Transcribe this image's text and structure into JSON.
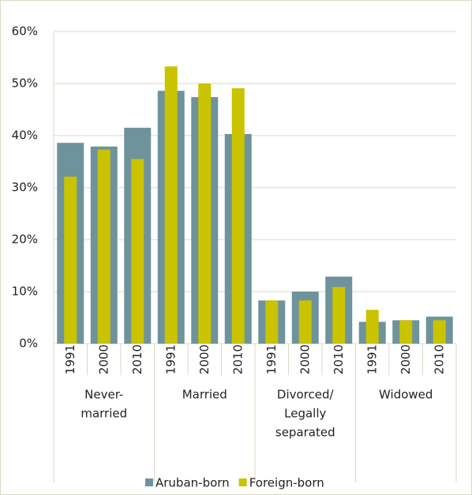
{
  "chart_data": {
    "type": "bar",
    "categories": [
      "1991",
      "2000",
      "2010",
      "1991",
      "2000",
      "2010",
      "1991",
      "2000",
      "2010",
      "1991",
      "2000",
      "2010"
    ],
    "groups": [
      {
        "lines": [
          "Never-",
          "married"
        ],
        "size": 3
      },
      {
        "lines": [
          "Married"
        ],
        "size": 3
      },
      {
        "lines": [
          "Divorced/",
          "Legally",
          "separated"
        ],
        "size": 3
      },
      {
        "lines": [
          "Widowed"
        ],
        "size": 3
      }
    ],
    "series": [
      {
        "name": "Aruban-born",
        "color": "#6f939d",
        "values": [
          38.6,
          37.9,
          41.5,
          48.6,
          47.4,
          40.3,
          8.3,
          10,
          12.9,
          4.2,
          4.5,
          5.2
        ]
      },
      {
        "name": "Foreign-born",
        "color": "#c9c300",
        "values": [
          32.1,
          37.3,
          35.5,
          53.3,
          50,
          49.1,
          8.3,
          8.3,
          10.9,
          6.5,
          4.5,
          4.5
        ]
      }
    ],
    "ylim": [
      0,
      60
    ],
    "yticks": [
      {
        "value": 0,
        "label": "0%"
      },
      {
        "value": 10,
        "label": "10%"
      },
      {
        "value": 20,
        "label": "20%"
      },
      {
        "value": 30,
        "label": "30%"
      },
      {
        "value": 40,
        "label": "40%"
      },
      {
        "value": 50,
        "label": "50%"
      },
      {
        "value": 60,
        "label": "60%"
      }
    ],
    "grid": true,
    "legend": "bottom"
  }
}
